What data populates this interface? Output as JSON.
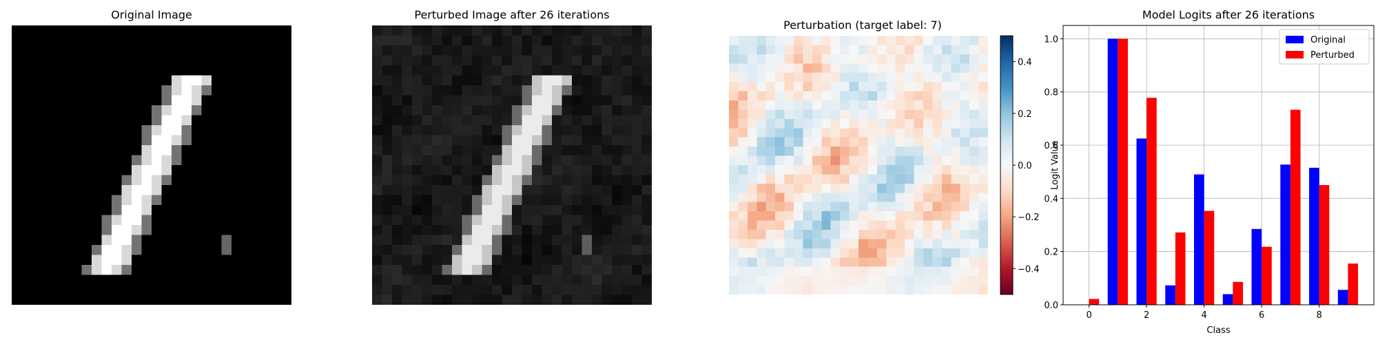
{
  "panels": {
    "original_title": "Original Image",
    "perturbed_title": "Perturbed Image after 26 iterations",
    "perturbation_title": "Perturbation (target label: 7)",
    "logits_title": "Model Logits after 26 iterations"
  },
  "colorbar": {
    "range": [
      -0.5,
      0.5
    ],
    "ticks": [
      "0.4",
      "0.2",
      "0.0",
      "−0.2",
      "−0.4"
    ],
    "tick_values": [
      0.4,
      0.2,
      0.0,
      -0.2,
      -0.4
    ],
    "colormap": "RdBu"
  },
  "chart_data": {
    "type": "bar",
    "title": "Model Logits after 26 iterations",
    "xlabel": "Class",
    "ylabel": "Logit Value",
    "categories": [
      0,
      1,
      2,
      3,
      4,
      5,
      6,
      7,
      8,
      9
    ],
    "x_ticks": [
      "0",
      "2",
      "4",
      "6",
      "8"
    ],
    "x_tick_values": [
      0,
      2,
      4,
      6,
      8
    ],
    "ylim": [
      0,
      1.05
    ],
    "y_ticks": [
      "0.0",
      "0.2",
      "0.4",
      "0.6",
      "0.8",
      "1.0"
    ],
    "y_tick_values": [
      0,
      0.2,
      0.4,
      0.6,
      0.8,
      1.0
    ],
    "grid": true,
    "legend_position": "top-right",
    "series": [
      {
        "name": "Original",
        "color": "#0000ff",
        "values": [
          0.0,
          1.0,
          0.625,
          0.073,
          0.49,
          0.04,
          0.285,
          0.527,
          0.515,
          0.056
        ]
      },
      {
        "name": "Perturbed",
        "color": "#ff0000",
        "values": [
          0.022,
          1.0,
          0.778,
          0.272,
          0.353,
          0.086,
          0.218,
          0.733,
          0.45,
          0.155
        ]
      }
    ]
  }
}
